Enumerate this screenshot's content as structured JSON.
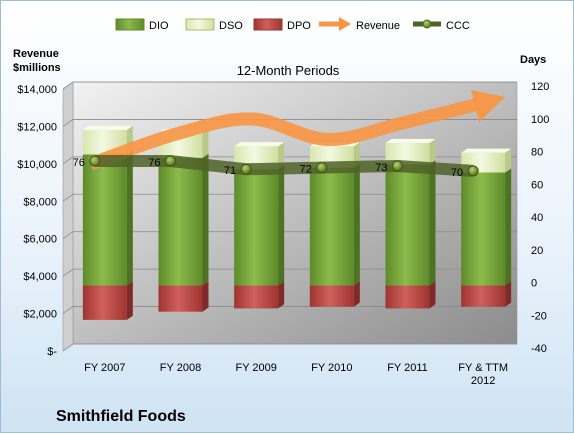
{
  "chart_data": {
    "type": "bar",
    "title": "12-Month Periods",
    "company": "Smithfield Foods",
    "left_axis_label": [
      "Revenue",
      "$millions"
    ],
    "right_axis_label": "Days",
    "categories": [
      "FY 2007",
      "FY 2008",
      "FY 2009",
      "FY 2010",
      "FY 2011",
      "FY & TTM 2012"
    ],
    "left_axis": {
      "min": 0,
      "max": 14000,
      "step": 2000,
      "tick_labels": [
        "$-",
        "$2,000",
        "$4,000",
        "$6,000",
        "$8,000",
        "$10,000",
        "$12,000",
        "$14,000"
      ]
    },
    "right_axis": {
      "min": -40,
      "max": 120,
      "step": 20
    },
    "series": [
      {
        "name": "DIO",
        "type": "bar",
        "axis": "right",
        "color": "#76a53a",
        "values": [
          80,
          78,
          71,
          72,
          74,
          69
        ]
      },
      {
        "name": "DSO",
        "type": "bar",
        "axis": "right",
        "color": "#e6f0c7",
        "values": [
          15,
          15,
          14,
          13,
          13,
          12
        ]
      },
      {
        "name": "DPO",
        "type": "bar",
        "axis": "right",
        "color": "#c0504d",
        "values": [
          -21,
          -16,
          -14,
          -13,
          -14,
          -13
        ]
      },
      {
        "name": "Revenue",
        "type": "arrow-line",
        "axis": "left",
        "color": "#f79646",
        "values": [
          10000,
          11600,
          12400,
          11300,
          12200,
          13200
        ]
      },
      {
        "name": "CCC",
        "type": "line",
        "axis": "right",
        "color": "#4f6228",
        "values": [
          76,
          76,
          71,
          72,
          73,
          70
        ],
        "data_labels": [
          "76",
          "76",
          "71",
          "72",
          "73",
          "70"
        ]
      }
    ],
    "grid": true,
    "legend": "top"
  }
}
